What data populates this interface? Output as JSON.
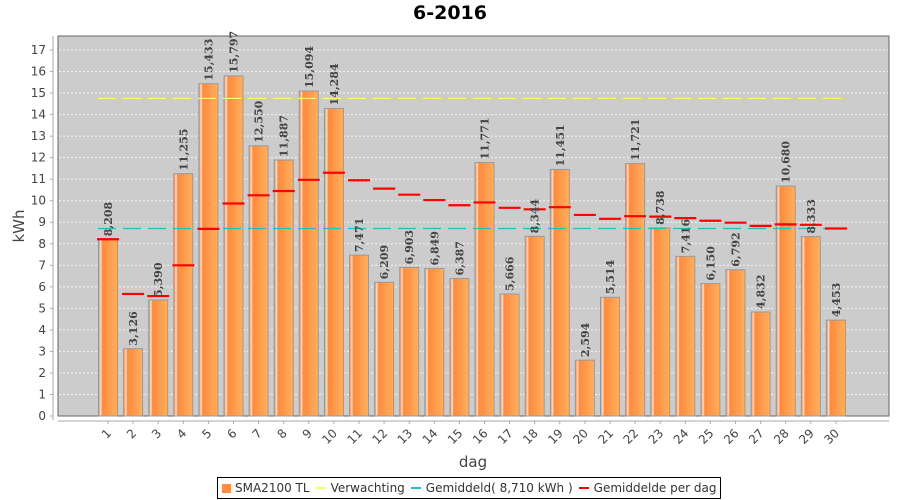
{
  "chart_data": {
    "type": "bar",
    "title": "6-2016",
    "xlabel": "dag",
    "ylabel": "kWh",
    "ylim": [
      0,
      17.5
    ],
    "yticks": [
      0,
      1,
      2,
      3,
      4,
      5,
      6,
      7,
      8,
      9,
      10,
      11,
      12,
      13,
      14,
      15,
      16,
      17
    ],
    "grid": true,
    "categories": [
      "1",
      "2",
      "3",
      "4",
      "5",
      "6",
      "7",
      "8",
      "9",
      "10",
      "11",
      "12",
      "13",
      "14",
      "15",
      "16",
      "17",
      "18",
      "19",
      "20",
      "21",
      "22",
      "23",
      "24",
      "25",
      "26",
      "27",
      "28",
      "29",
      "30"
    ],
    "series": [
      {
        "name": "SMA2100 TL",
        "kind": "bar",
        "color": "#ff8c42",
        "values": [
          8.208,
          3.126,
          5.39,
          11.255,
          15.433,
          15.797,
          12.55,
          11.887,
          15.094,
          14.284,
          7.471,
          6.209,
          6.903,
          6.849,
          6.387,
          11.771,
          5.666,
          8.344,
          11.451,
          2.594,
          5.514,
          11.721,
          8.738,
          7.416,
          6.15,
          6.792,
          4.832,
          10.68,
          8.333,
          4.453
        ],
        "labels": [
          "8,208",
          "3,126",
          "5,390",
          "11,255",
          "15,433",
          "15,797",
          "12,550",
          "11,887",
          "15,094",
          "14,284",
          "7,471",
          "6,209",
          "6,903",
          "6,849",
          "6,387",
          "11,771",
          "5,666",
          "8,344",
          "11,451",
          "2,594",
          "5,514",
          "11,721",
          "8,738",
          "7,416",
          "6,150",
          "6,792",
          "4,832",
          "10,680",
          "8,333",
          "4,453"
        ]
      },
      {
        "name": "Verwachting",
        "kind": "hline-dashed",
        "color": "#ffff66",
        "value": 14.75
      },
      {
        "name": "Gemiddeld( 8,710 kWh )",
        "kind": "hline-dashed",
        "color": "#20c0c0",
        "value": 8.71
      },
      {
        "name": "Gemiddelde per dag",
        "kind": "step-markers",
        "color": "#ff0000",
        "values": [
          8.21,
          5.67,
          5.57,
          7.0,
          8.69,
          9.87,
          10.25,
          10.45,
          10.97,
          11.3,
          10.95,
          10.56,
          10.28,
          10.03,
          9.79,
          9.92,
          9.67,
          9.6,
          9.7,
          9.34,
          9.16,
          9.28,
          9.26,
          9.19,
          9.07,
          8.98,
          8.83,
          8.9,
          8.88,
          8.71
        ]
      }
    ],
    "legend_position": "bottom"
  },
  "legend": {
    "items": [
      {
        "label": "SMA2100 TL",
        "color": "#ff8c42",
        "kind": "box"
      },
      {
        "label": "Verwachting",
        "color": "#ffff66",
        "kind": "line"
      },
      {
        "label": "Gemiddeld( 8,710 kWh )",
        "color": "#20c0c0",
        "kind": "line"
      },
      {
        "label": "Gemiddelde per dag",
        "color": "#ff0000",
        "kind": "line"
      }
    ]
  }
}
